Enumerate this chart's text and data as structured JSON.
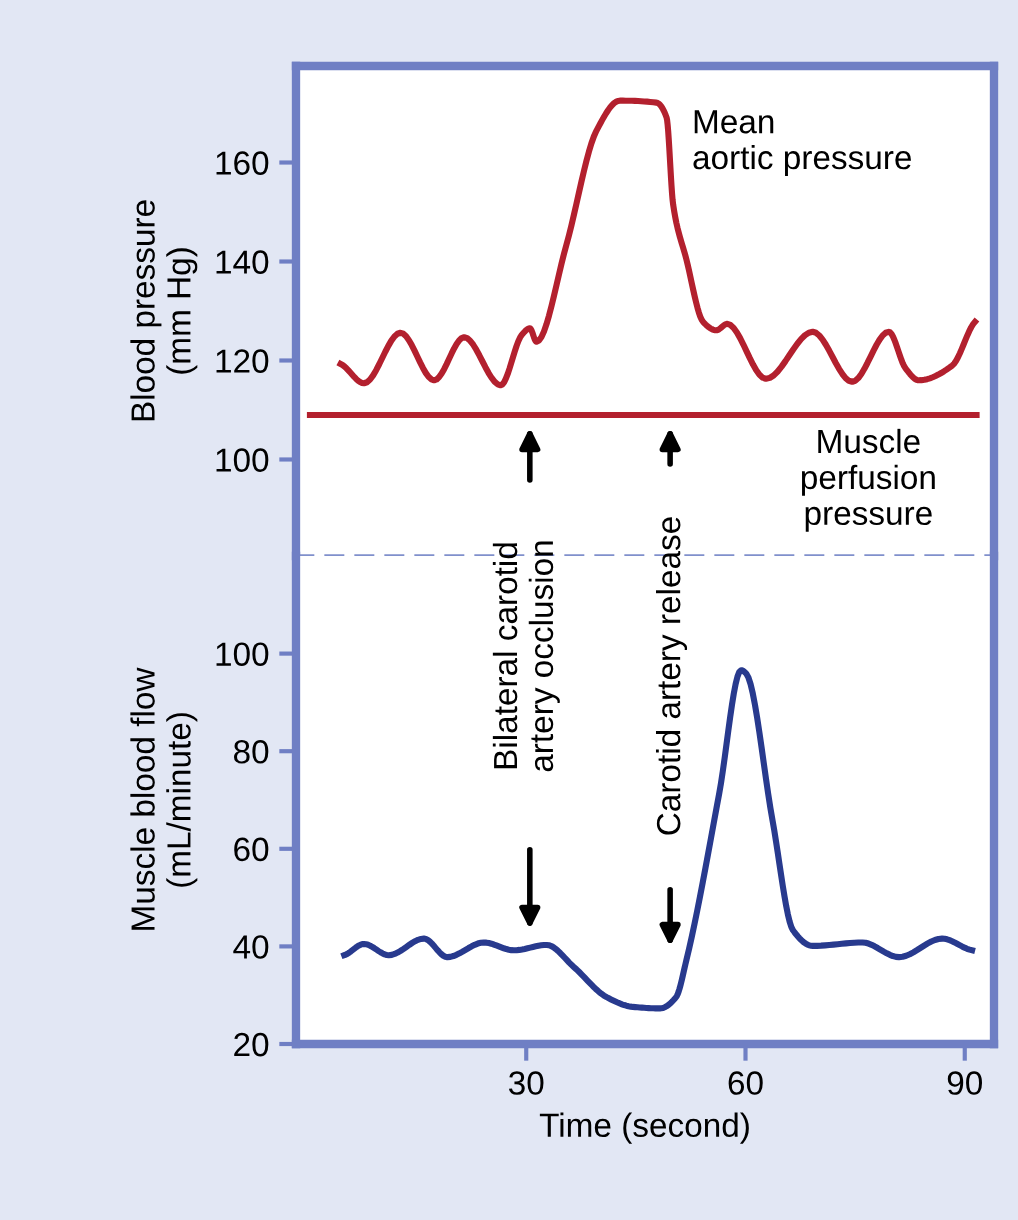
{
  "chart_data": [
    {
      "type": "line",
      "ylabel": "Blood pressure\n(mm Hg)",
      "xlim": [
        -1.5,
        94
      ],
      "ylim": [
        80.5,
        179.5
      ],
      "yticks": [
        100,
        120,
        140,
        160
      ],
      "tick_labels": "y",
      "grid": false,
      "legend": false,
      "marker": "none",
      "line_style": "solid",
      "series": [
        {
          "name": "Mean\naortic pressure",
          "color": "#b3202e",
          "x": [
            4.6,
            7.8,
            12.8,
            17.4,
            21.5,
            26.5,
            29.4,
            30.5,
            31.4,
            35.5,
            39.6,
            42.8,
            47.8,
            49.2,
            50.1,
            51.9,
            54.2,
            56,
            57.5,
            62.8,
            69.2,
            74.6,
            79.6,
            81.9,
            83.7,
            88.3,
            91.4
          ],
          "values": [
            119.3,
            115.4,
            125.6,
            116,
            124.7,
            115,
            125.2,
            126.5,
            123.8,
            143.4,
            166.4,
            172.5,
            172.1,
            169.1,
            151.5,
            140.5,
            127.8,
            126.1,
            127.4,
            116.3,
            125.8,
            115.7,
            125.8,
            118.4,
            116,
            119,
            127.8
          ]
        }
      ],
      "ref_lines": [
        {
          "axis": "y",
          "value": 109,
          "label": "Muscle\nperfusion\npressure",
          "color": "#b3202e",
          "line_style": "solid"
        }
      ]
    },
    {
      "type": "line",
      "xlabel": "Time (second)",
      "ylabel": "Muscle blood flow\n(mL/minute)",
      "xlim": [
        -1.5,
        94
      ],
      "ylim": [
        20,
        120
      ],
      "xticks": [
        30,
        60,
        90
      ],
      "yticks": [
        20,
        40,
        60,
        80,
        100
      ],
      "grid": false,
      "legend": false,
      "marker": "none",
      "line_style": "solid",
      "series": [
        {
          "color": "#283a8e",
          "x": [
            5.1,
            7.8,
            11.2,
            16,
            19.2,
            24.2,
            28.3,
            32.8,
            36.5,
            41,
            44.6,
            48.3,
            50.5,
            51.9,
            56.4,
            59.4,
            60.1,
            63.7,
            66.5,
            69.2,
            76,
            81,
            86.9,
            91
          ],
          "values": [
            38.2,
            40.5,
            38.2,
            41.6,
            37.8,
            40.8,
            39.2,
            40.3,
            35.8,
            29.6,
            27.6,
            27.3,
            29.6,
            37.1,
            71.3,
            96.6,
            95.9,
            65.8,
            43.3,
            40.1,
            40.8,
            37.8,
            41.6,
            39.2
          ]
        }
      ],
      "annotations": [
        "Bilateral carotid\nartery occlusion",
        "Carotid artery release"
      ]
    }
  ]
}
